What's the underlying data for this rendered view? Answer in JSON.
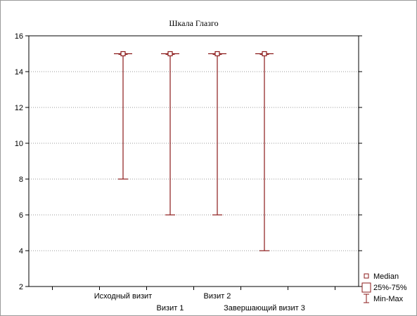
{
  "chart_data": {
    "type": "box",
    "title": "Шкала Глазго",
    "xlabel": "",
    "ylabel": "",
    "ylim": [
      2,
      16
    ],
    "yticks": [
      2,
      4,
      6,
      8,
      10,
      12,
      14,
      16
    ],
    "grid": true,
    "categories": [
      "Исходный визит",
      "Визит 1",
      "Визит 2",
      "Завершающий визит 3"
    ],
    "median": [
      15,
      15,
      15,
      15
    ],
    "q1": [
      15,
      15,
      15,
      15
    ],
    "q3": [
      15,
      15,
      15,
      15
    ],
    "min": [
      8,
      6,
      6,
      4
    ],
    "max": [
      15,
      15,
      15,
      15
    ],
    "legend": {
      "placement": "bottom-right",
      "entries": [
        "Median",
        "25%-75%",
        "Min-Max"
      ]
    },
    "colors": {
      "whisker": "#8b1a1a",
      "box": "#8b1a1a",
      "grid": "#9a9a9a",
      "axis": "#000000"
    }
  }
}
